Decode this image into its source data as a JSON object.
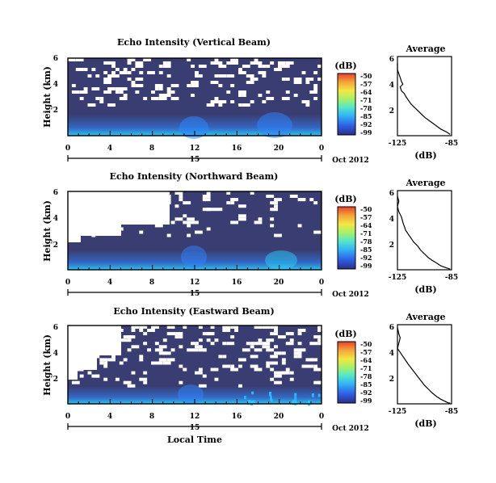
{
  "colors": {
    "background": "#3a3d72",
    "gap": "#ffffff",
    "surface_bright": "#29d9ff",
    "surface_mid": "#2e86ff",
    "colorbar": [
      "#2b2f88",
      "#2f5fe6",
      "#33b7f5",
      "#54e7c8",
      "#a6f06a",
      "#f2e842",
      "#f6a43a",
      "#e6402c"
    ]
  },
  "units_label": "(dB)",
  "colorbar_ticks": [
    "-50",
    "-57",
    "-64",
    "-71",
    "-78",
    "-85",
    "-92",
    "-99"
  ],
  "shared": {
    "y_label": "Height (km)",
    "x_ticks": [
      "0",
      "4",
      "8",
      "12",
      "16",
      "20",
      "0"
    ],
    "date_day": "15",
    "date_month_year": "Oct 2012",
    "x_axis_title": "Local Time",
    "profile_title": "Average",
    "profile_x_ticks": [
      "-125",
      "-85"
    ],
    "profile_x_label": "(dB)",
    "profile_y_ticks": [
      "6",
      "4",
      "2"
    ]
  },
  "panels": [
    {
      "title": "Echo Intensity (Vertical Beam)",
      "y_ticks": [
        "6",
        "4",
        "2"
      ]
    },
    {
      "title": "Echo Intensity (Northward Beam)",
      "y_ticks": [
        "6",
        "4",
        "2"
      ]
    },
    {
      "title": "Echo Intensity (Eastward Beam)",
      "y_ticks": [
        "6",
        "4",
        "2"
      ]
    }
  ],
  "chart_data": [
    {
      "type": "heatmap",
      "title": "Echo Intensity (Vertical Beam)",
      "xlabel": "Local Time",
      "ylabel": "Height (km)",
      "x_range_hours": [
        0,
        24
      ],
      "y_range_km": [
        0,
        6
      ],
      "color_scale_db": [
        -99,
        -50
      ],
      "note": "Mostly low echo (about -99 to -92 dB); white gaps above about 3.5 km; enhanced echo below 1 km near 12 h and 20 h"
    },
    {
      "type": "line",
      "title": "Average",
      "xlabel": "(dB)",
      "xlim": [
        -125,
        -85
      ],
      "ylim": [
        0,
        6
      ],
      "x": [
        -126,
        -125,
        -124,
        -123,
        -122,
        -121,
        -123,
        -122,
        -120,
        -119,
        -117,
        -115,
        -112,
        -109,
        -105,
        -101,
        -97,
        -93,
        -89,
        -86
      ],
      "y": [
        5.5,
        5.0,
        4.7,
        4.4,
        4.1,
        3.9,
        3.7,
        3.4,
        3.2,
        3.0,
        2.7,
        2.4,
        2.1,
        1.8,
        1.4,
        1.1,
        0.8,
        0.5,
        0.3,
        0.1
      ]
    },
    {
      "type": "heatmap",
      "title": "Echo Intensity (Northward Beam)",
      "xlabel": "Local Time",
      "ylabel": "Height (km)",
      "x_range_hours": [
        0,
        24
      ],
      "y_range_km": [
        0,
        6
      ],
      "color_scale_db": [
        -99,
        -50
      ],
      "note": "Large white gap in upper left (0-10 h above about 3.5 km); enhanced echo near 12 h and 20 h"
    },
    {
      "type": "line",
      "title": "Average",
      "xlabel": "(dB)",
      "xlim": [
        -125,
        -85
      ],
      "ylim": [
        0,
        6
      ],
      "x": [
        -125,
        -124,
        -125,
        -124,
        -122,
        -121,
        -120,
        -119,
        -117,
        -115,
        -113,
        -110,
        -108,
        -105,
        -102,
        -99,
        -96,
        -93,
        -89,
        -86
      ],
      "y": [
        5.6,
        5.2,
        4.8,
        4.4,
        4.0,
        3.6,
        3.3,
        3.0,
        2.7,
        2.4,
        2.1,
        1.8,
        1.5,
        1.2,
        0.9,
        0.7,
        0.5,
        0.3,
        0.15,
        0.05
      ]
    },
    {
      "type": "heatmap",
      "title": "Echo Intensity (Eastward Beam)",
      "xlabel": "Local Time",
      "ylabel": "Height (km)",
      "x_range_hours": [
        0,
        24
      ],
      "y_range_km": [
        0,
        6
      ],
      "color_scale_db": [
        -99,
        -50
      ],
      "note": "Scattered white gaps at all heights; bright cyan speckles near the surface after 17 h"
    },
    {
      "type": "line",
      "title": "Average",
      "xlabel": "(dB)",
      "xlim": [
        -125,
        -85
      ],
      "ylim": [
        0,
        6
      ],
      "x": [
        -125,
        -124,
        -123,
        -124,
        -125,
        -123,
        -121,
        -119,
        -117,
        -114,
        -111,
        -108,
        -105,
        -102,
        -99,
        -96,
        -93,
        -90,
        -88,
        -86
      ],
      "y": [
        5.8,
        5.3,
        5.0,
        4.6,
        4.2,
        3.9,
        3.6,
        3.3,
        3.0,
        2.6,
        2.2,
        1.8,
        1.4,
        1.1,
        0.8,
        0.55,
        0.35,
        0.2,
        0.1,
        0.05
      ]
    }
  ]
}
